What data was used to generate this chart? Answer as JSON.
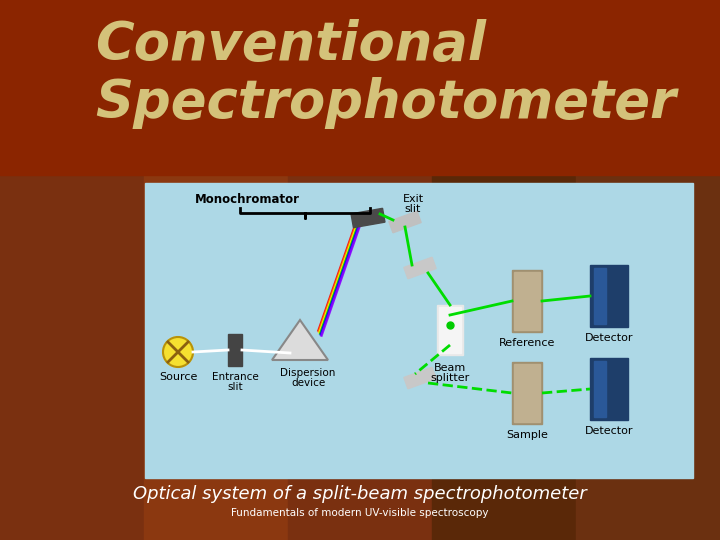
{
  "title_line1": "Conventional",
  "title_line2": "Spectrophotometer",
  "title_color": "#D4C27A",
  "title_bg_color": "#8B2500",
  "diagram_bg_color": "#ADD8E6",
  "caption_main": "Optical system of a split-beam spectrophotometer",
  "caption_sub": "Fundamentals of modern UV-visible spectroscopy",
  "caption_color": "#FFFFFF",
  "slide_bg": "#5C3317",
  "bg_strips": [
    "#7A3010",
    "#8B3810",
    "#7A3010",
    "#5A2808",
    "#6B3010"
  ]
}
